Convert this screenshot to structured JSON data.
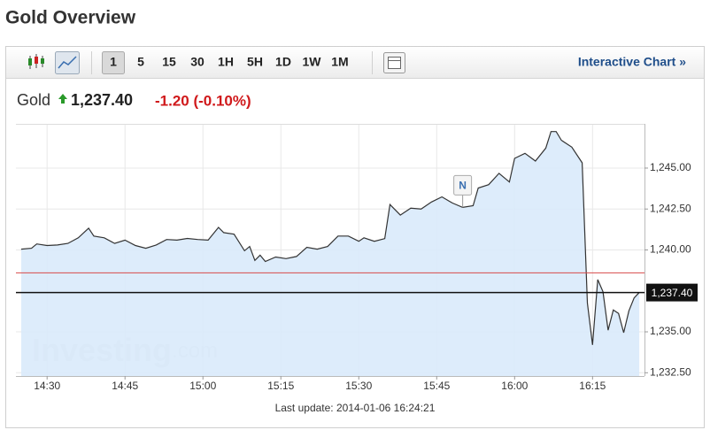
{
  "header": {
    "title": "Gold Overview"
  },
  "toolbar": {
    "periods": [
      "1",
      "5",
      "15",
      "30",
      "1H",
      "5H",
      "1D",
      "1W",
      "1M"
    ],
    "selected_index": 0,
    "link": "Interactive Chart »"
  },
  "quote": {
    "name": "Gold",
    "price": "1,237.40",
    "change": "-1.20 (-0.10%)"
  },
  "chart_data": {
    "type": "line",
    "x": [
      "14:25",
      "14:27",
      "14:28",
      "14:30",
      "14:32",
      "14:34",
      "14:36",
      "14:38",
      "14:39",
      "14:41",
      "14:43",
      "14:45",
      "14:47",
      "14:49",
      "14:51",
      "14:53",
      "14:55",
      "14:57",
      "14:59",
      "15:01",
      "15:03",
      "15:04",
      "15:06",
      "15:08",
      "15:09",
      "15:10",
      "15:11",
      "15:12",
      "15:14",
      "15:16",
      "15:18",
      "15:20",
      "15:22",
      "15:24",
      "15:26",
      "15:28",
      "15:30",
      "15:31",
      "15:33",
      "15:35",
      "15:36",
      "15:38",
      "15:40",
      "15:42",
      "15:44",
      "15:46",
      "15:48",
      "15:50",
      "15:52",
      "15:53",
      "15:55",
      "15:57",
      "15:59",
      "16:00",
      "16:02",
      "16:04",
      "16:06",
      "16:07",
      "16:08",
      "16:09",
      "16:11",
      "16:13",
      "16:14",
      "16:15",
      "16:16",
      "16:17",
      "16:18",
      "16:19",
      "16:20",
      "16:21",
      "16:22",
      "16:23",
      "16:24"
    ],
    "values": [
      1240.05,
      1240.1,
      1240.37,
      1240.27,
      1240.3,
      1240.4,
      1240.74,
      1241.33,
      1240.85,
      1240.74,
      1240.4,
      1240.6,
      1240.27,
      1240.1,
      1240.3,
      1240.64,
      1240.6,
      1240.7,
      1240.64,
      1240.6,
      1241.38,
      1241.06,
      1240.96,
      1239.95,
      1240.21,
      1239.36,
      1239.68,
      1239.3,
      1239.57,
      1239.47,
      1239.6,
      1240.16,
      1240.05,
      1240.21,
      1240.85,
      1240.85,
      1240.53,
      1240.74,
      1240.53,
      1240.69,
      1242.77,
      1242.13,
      1242.55,
      1242.5,
      1242.93,
      1243.24,
      1242.87,
      1242.6,
      1242.7,
      1243.78,
      1243.99,
      1244.68,
      1244.15,
      1245.59,
      1245.9,
      1245.43,
      1246.22,
      1247.23,
      1247.23,
      1246.7,
      1246.28,
      1245.32,
      1236.76,
      1234.2,
      1238.19,
      1237.45,
      1235.1,
      1236.33,
      1236.12,
      1234.95,
      1236.28,
      1237.07,
      1237.4
    ],
    "color": "#333333",
    "fill": "#d9eafb",
    "xlim": [
      "14:24",
      "16:25"
    ],
    "xticks": [
      "14:30",
      "14:45",
      "15:00",
      "15:15",
      "15:30",
      "15:45",
      "16:00",
      "16:15"
    ],
    "ylim": [
      1232.3,
      1247.7
    ],
    "yticks": [
      {
        "value": 1232.5,
        "label": "1,232.50"
      },
      {
        "value": 1235,
        "label": "1,235.00"
      },
      {
        "value": 1240,
        "label": "1,240.00"
      },
      {
        "value": 1242.5,
        "label": "1,242.50"
      },
      {
        "value": 1245,
        "label": "1,245.00"
      }
    ],
    "grid": true,
    "last_price": {
      "value": 1237.4,
      "label": "1,237.40"
    },
    "previous_close": 1238.6,
    "marker": {
      "x": "15:50",
      "label": "N"
    },
    "watermark": [
      "Investing",
      ".com"
    ]
  },
  "footer": "Last update: 2014-01-06 16:24:21"
}
